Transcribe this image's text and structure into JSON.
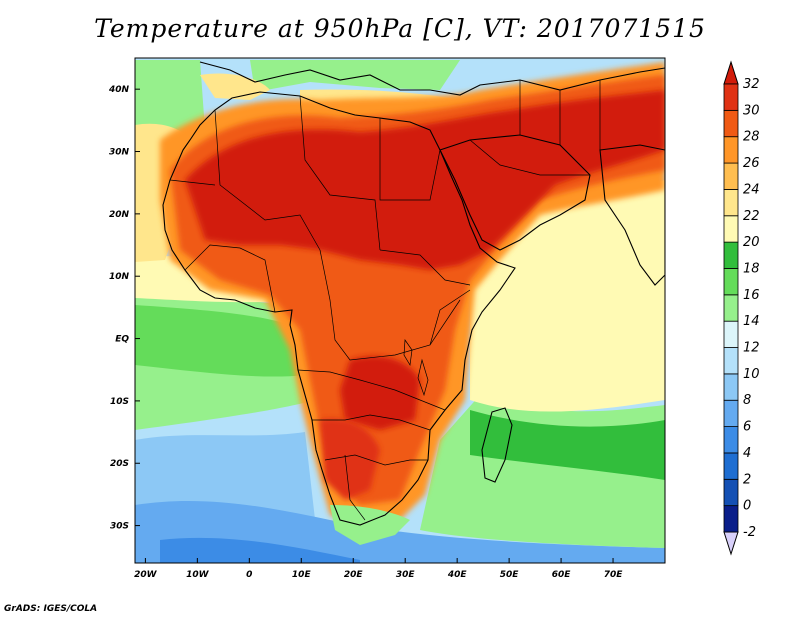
{
  "title": "Temperature at 950hPa [C], VT: 2017071515",
  "credit": "GrADS: IGES/COLA",
  "map": {
    "lon_range": [
      -22,
      80
    ],
    "lat_range": [
      -36,
      45
    ],
    "lon_ticks": [
      {
        "value": -20,
        "label": "20W"
      },
      {
        "value": -10,
        "label": "10W"
      },
      {
        "value": 0,
        "label": "0"
      },
      {
        "value": 10,
        "label": "10E"
      },
      {
        "value": 20,
        "label": "20E"
      },
      {
        "value": 30,
        "label": "30E"
      },
      {
        "value": 40,
        "label": "40E"
      },
      {
        "value": 50,
        "label": "50E"
      },
      {
        "value": 60,
        "label": "60E"
      },
      {
        "value": 70,
        "label": "70E"
      }
    ],
    "lat_ticks": [
      {
        "value": 40,
        "label": "40N"
      },
      {
        "value": 30,
        "label": "30N"
      },
      {
        "value": 20,
        "label": "20N"
      },
      {
        "value": 10,
        "label": "10N"
      },
      {
        "value": 0,
        "label": "EQ"
      },
      {
        "value": -10,
        "label": "10S"
      },
      {
        "value": -20,
        "label": "20S"
      },
      {
        "value": -30,
        "label": "30S"
      }
    ]
  },
  "colorbar": {
    "levels": [
      "-2",
      "0",
      "2",
      "4",
      "6",
      "8",
      "10",
      "12",
      "14",
      "16",
      "18",
      "20",
      "22",
      "24",
      "26",
      "28",
      "30",
      "32"
    ],
    "colors": [
      "#d8d0fa",
      "#0a1e8a",
      "#1450b4",
      "#1e6ed2",
      "#3c8ce6",
      "#64aaf0",
      "#8cc8f5",
      "#b4e1fa",
      "#dcf5fa",
      "#96f08c",
      "#64dc5a",
      "#32be3c",
      "#fffab4",
      "#ffe68c",
      "#ffbe50",
      "#ff9628",
      "#f05a14",
      "#e03214",
      "#d21c0a"
    ]
  }
}
